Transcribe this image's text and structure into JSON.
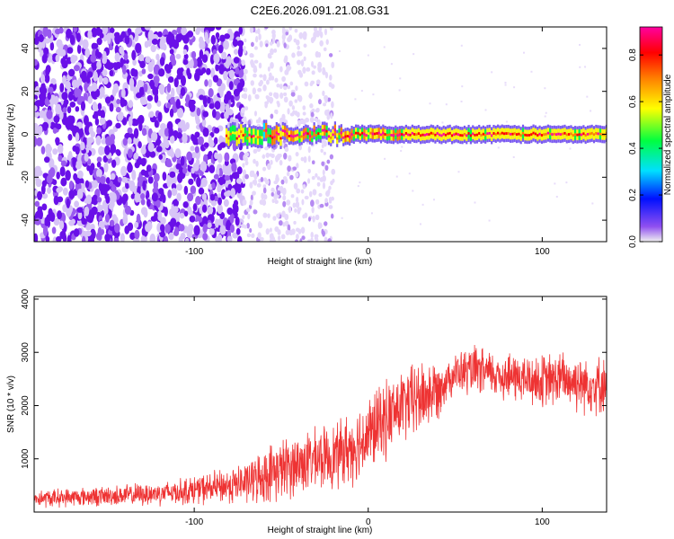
{
  "page_title": "C2E6.2026.091.21.08.G31",
  "chart_data": [
    {
      "type": "heatmap",
      "title": "C2E6.2026.091.21.08.G31",
      "xlabel": "Height of straight line (km)",
      "ylabel": "Frequency (Hz)",
      "xlim": [
        -192,
        137
      ],
      "ylim": [
        -50,
        50
      ],
      "xticks": [
        -100,
        0,
        100
      ],
      "yticks": [
        -40,
        -20,
        0,
        20,
        40
      ],
      "xtick_labels": [
        "-100",
        "0",
        "100"
      ],
      "ytick_labels": [
        "-40",
        "-20",
        "0",
        "20",
        "40"
      ],
      "colorbar": {
        "label": "Normalized spectral amplitude",
        "range": [
          0,
          0.92
        ],
        "ticks": [
          0,
          0.2,
          0.4,
          0.6,
          0.8
        ],
        "tick_labels": [
          "0.0",
          "0.2",
          "0.4",
          "0.6",
          "0.8"
        ],
        "colormap": [
          "#f0f0f0",
          "#7030e0",
          "#0010ff",
          "#00e0ff",
          "#00ff40",
          "#ffff00",
          "#ff8000",
          "#ff0000",
          "#ff00a0"
        ]
      },
      "description_series": [
        {
          "region": "noise",
          "x_range": [
            -192,
            -72
          ],
          "freq_spread": [
            -50,
            50
          ],
          "amplitude": [
            0.05,
            0.25
          ]
        },
        {
          "region": "faint noise",
          "x_range": [
            -72,
            -20
          ],
          "freq_spread": [
            -50,
            50
          ],
          "amplitude": [
            0.02,
            0.1
          ]
        },
        {
          "region": "carrier",
          "x_range": [
            -82,
            137
          ],
          "freq_center": 0,
          "freq_halfwidth": 2.5,
          "amplitude": [
            0.3,
            0.92
          ]
        }
      ]
    },
    {
      "type": "line",
      "xlabel": "Height of straight line (km)",
      "ylabel": "SNR (10 * v/v)",
      "xlim": [
        -192,
        137
      ],
      "ylim": [
        0,
        4050
      ],
      "xticks": [
        -100,
        0,
        100
      ],
      "yticks": [
        1000,
        2000,
        3000,
        4000
      ],
      "xtick_labels": [
        "-100",
        "0",
        "100"
      ],
      "ytick_labels": [
        "1000",
        "2000",
        "3000",
        "4000"
      ],
      "color": "#ee3333",
      "series": [
        {
          "x": [
            -192,
            -170,
            -150,
            -130,
            -110,
            -90,
            -70,
            -55,
            -40,
            -30,
            -20,
            -10,
            0,
            10,
            20,
            30,
            40,
            45,
            50,
            60,
            70,
            80,
            90,
            100,
            110,
            120,
            130,
            137
          ],
          "mean": [
            250,
            280,
            300,
            330,
            380,
            450,
            550,
            750,
            900,
            1000,
            1050,
            1200,
            1450,
            1750,
            2000,
            2150,
            2300,
            2500,
            2600,
            2650,
            2600,
            2550,
            2500,
            2450,
            2500,
            2450,
            2400,
            2400
          ],
          "spread": [
            200,
            200,
            220,
            250,
            280,
            350,
            450,
            650,
            700,
            650,
            700,
            800,
            850,
            850,
            800,
            850,
            650,
            450,
            450,
            550,
            500,
            550,
            550,
            600,
            600,
            650,
            650,
            600
          ]
        }
      ]
    }
  ]
}
